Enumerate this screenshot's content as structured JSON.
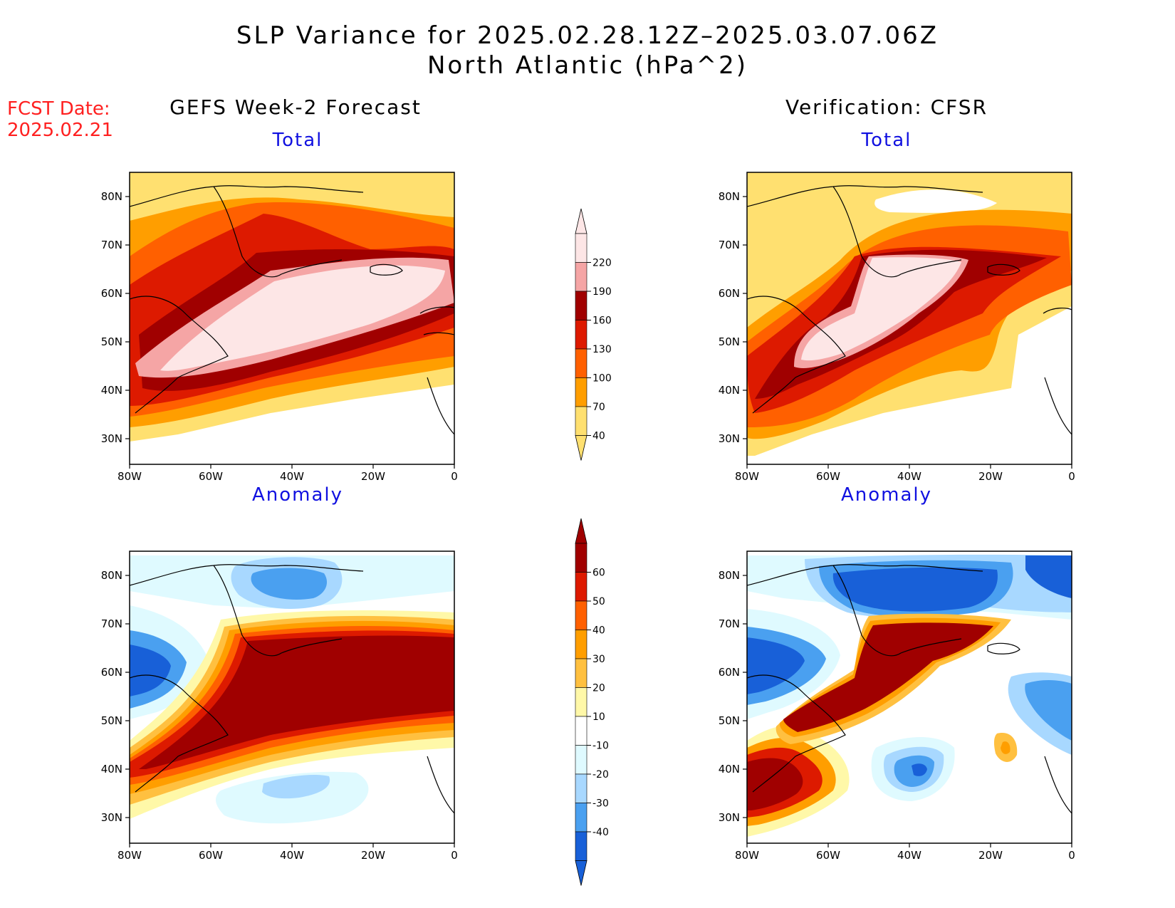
{
  "header": {
    "title_line1": "SLP Variance for 2025.02.28.12Z–2025.03.07.06Z",
    "title_line2": "North Atlantic (hPa^2)",
    "fcst_line1": "FCST Date:",
    "fcst_line2": "2025.02.21",
    "left_heading": "GEFS Week-2 Forecast",
    "right_heading": "Verification: CFSR"
  },
  "panels": {
    "top_left_title": "Total",
    "top_right_title": "Total",
    "bottom_left_title": "Anomaly",
    "bottom_right_title": "Anomaly"
  },
  "axes": {
    "lat_labels": [
      "80N",
      "70N",
      "60N",
      "50N",
      "40N",
      "30N"
    ],
    "lon_labels": [
      "80W",
      "60W",
      "40W",
      "20W",
      "0"
    ]
  },
  "colorbar_total": {
    "levels": [
      "220",
      "190",
      "160",
      "130",
      "100",
      "70",
      "40"
    ],
    "colors": [
      "#fde6e6",
      "#f5a5a5",
      "#a00000",
      "#dd1a00",
      "#ff6000",
      "#ff9e00",
      "#ffe070"
    ]
  },
  "colorbar_anomaly": {
    "levels": [
      "60",
      "50",
      "40",
      "30",
      "20",
      "10",
      "-10",
      "-20",
      "-30",
      "-40"
    ],
    "colors": [
      "#a00000",
      "#dd1a00",
      "#ff6000",
      "#ff9e00",
      "#ffc040",
      "#fff8a8",
      "#ffffff",
      "#dffaff",
      "#a8d8ff",
      "#4aa0f0",
      "#1860d8"
    ]
  }
}
